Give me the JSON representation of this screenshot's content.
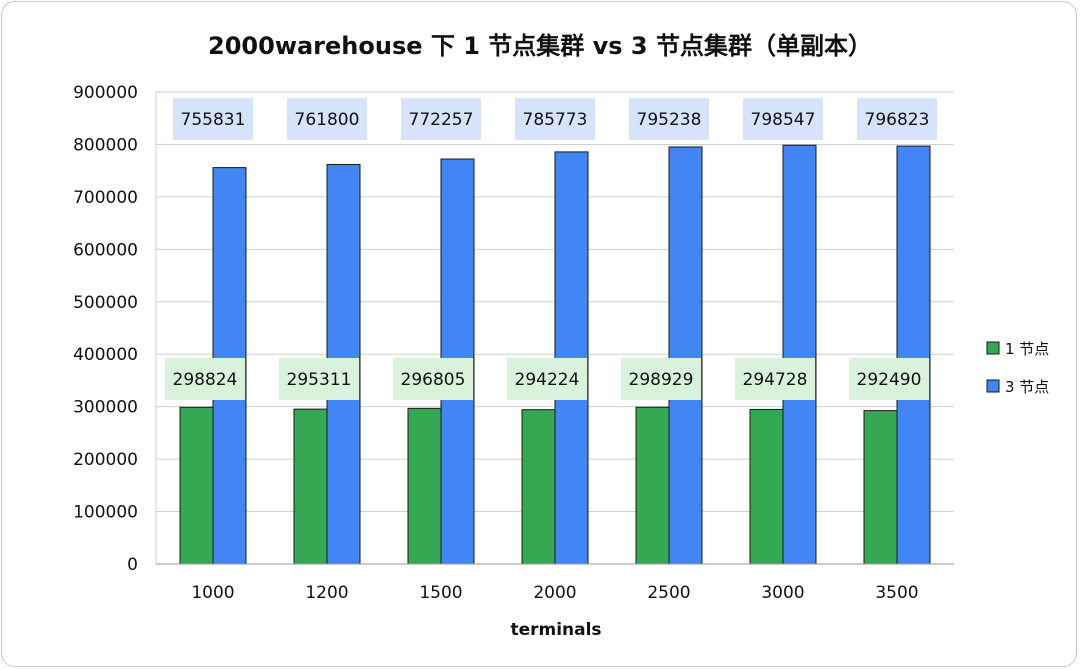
{
  "chart_data": {
    "type": "bar",
    "title": "2000warehouse 下 1 节点集群 vs 3 节点集群（单副本）",
    "xlabel": "terminals",
    "ylabel": "",
    "categories": [
      "1000",
      "1200",
      "1500",
      "2000",
      "2500",
      "3000",
      "3500"
    ],
    "series": [
      {
        "name": "1 节点",
        "color": "#34a853",
        "label_bg": "#d9f2dc",
        "values": [
          298824,
          295311,
          296805,
          294224,
          298929,
          294728,
          292490
        ]
      },
      {
        "name": "3 节点",
        "color": "#4285f4",
        "label_bg": "#d6e4fb",
        "values": [
          755831,
          761800,
          772257,
          785773,
          795238,
          798547,
          796823
        ]
      }
    ],
    "ylim": [
      0,
      900000
    ],
    "yticks": [
      0,
      100000,
      200000,
      300000,
      400000,
      500000,
      600000,
      700000,
      800000,
      900000
    ],
    "grid": true,
    "legend_position": "right"
  }
}
